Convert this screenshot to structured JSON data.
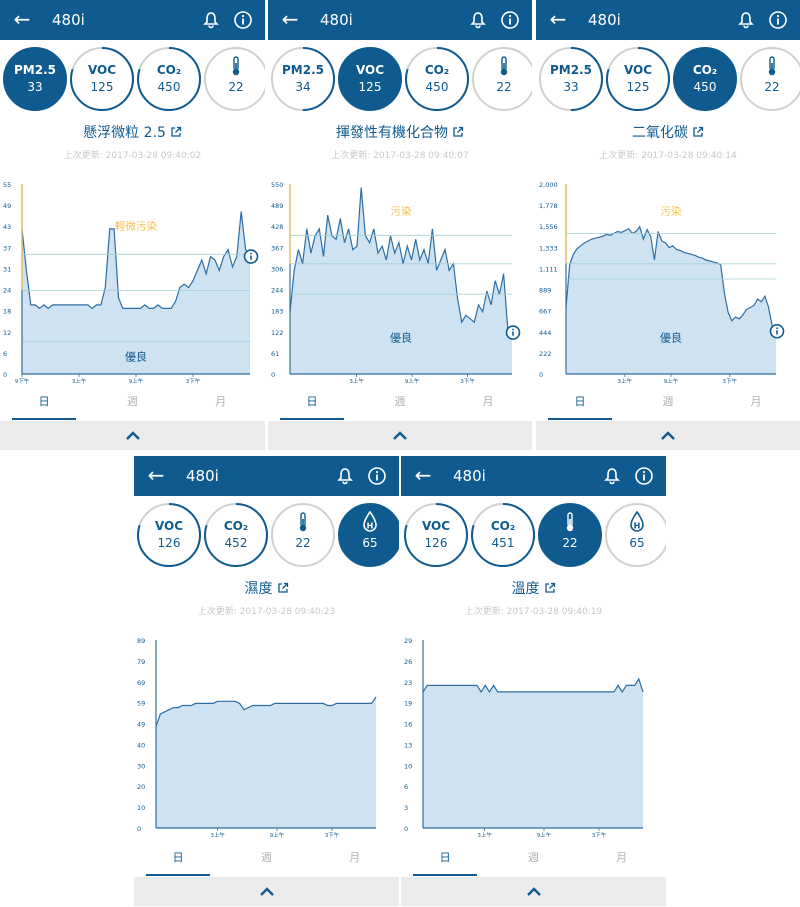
{
  "colors": {
    "primary": "#0f5b8f",
    "chart_fill": "#cfe2f1",
    "chart_line": "#2d6ea4",
    "threshold": "#f2c04e",
    "grid": "#a3d1d1",
    "ring_bg": "#d0d0d0"
  },
  "panels": [
    {
      "header": {
        "title": "480i",
        "back_icon": "back-arrow-icon",
        "bell_icon": "bell-icon",
        "info_icon": "info-icon"
      },
      "metrics": [
        {
          "label": "PM2.5",
          "value": "33",
          "active": true,
          "progress": 0.55
        },
        {
          "label": "VOC",
          "value": "125",
          "active": false,
          "progress": 0.8
        },
        {
          "label": "CO₂",
          "value": "450",
          "active": false,
          "progress": 0.8
        },
        {
          "label": "",
          "icon": "thermometer-icon",
          "value": "22",
          "active": false,
          "progress": 0
        }
      ],
      "title": "懸浮微粒 2.5",
      "updated": "上次更新: 2017-03-28 09:40:02",
      "tabs": [
        "日",
        "週",
        "月"
      ],
      "chart_data": {
        "type": "area",
        "y_ticks": [
          "55",
          "49",
          "43",
          "37",
          "31",
          "24",
          "18",
          "12",
          "6",
          "0"
        ],
        "ylim": [
          0,
          55
        ],
        "x_ticks": [
          "9下午",
          "3上午",
          "9上午",
          "3下午"
        ],
        "annotations": [
          "輕微污染",
          "優良"
        ],
        "values": [
          42,
          30,
          20,
          20,
          19,
          20,
          19,
          20,
          20,
          20,
          20,
          20,
          20,
          20,
          20,
          20,
          19,
          20,
          20,
          25,
          42,
          42,
          22,
          19,
          19,
          19,
          19,
          19,
          20,
          19,
          19,
          20,
          19,
          19,
          19,
          21,
          25,
          26,
          25,
          27,
          30,
          33,
          29,
          34,
          33,
          30,
          34,
          36,
          31,
          34,
          47,
          36,
          34
        ]
      }
    },
    {
      "header": {
        "title": "480i",
        "back_icon": "back-arrow-icon",
        "bell_icon": "bell-icon",
        "info_icon": "info-icon"
      },
      "metrics": [
        {
          "label": "PM2.5",
          "value": "34",
          "active": false,
          "progress": 0.5
        },
        {
          "label": "VOC",
          "value": "125",
          "active": true,
          "progress": 0.8
        },
        {
          "label": "CO₂",
          "value": "450",
          "active": false,
          "progress": 0.8
        },
        {
          "label": "",
          "icon": "thermometer-icon",
          "value": "22",
          "active": false,
          "progress": 0
        }
      ],
      "title": "揮發性有機化合物",
      "updated": "上次更新: 2017-03-28 09:40:07",
      "tabs": [
        "日",
        "週",
        "月"
      ],
      "chart_data": {
        "type": "area",
        "y_ticks": [
          "550",
          "489",
          "428",
          "367",
          "306",
          "244",
          "183",
          "122",
          "61",
          "0"
        ],
        "ylim": [
          0,
          550
        ],
        "x_ticks": [
          "3上午",
          "9上午",
          "3下午"
        ],
        "annotations": [
          "污染",
          "優良"
        ],
        "values": [
          180,
          300,
          360,
          320,
          420,
          350,
          400,
          420,
          340,
          460,
          400,
          390,
          450,
          380,
          420,
          360,
          370,
          540,
          400,
          380,
          420,
          350,
          370,
          330,
          400,
          350,
          380,
          320,
          370,
          330,
          390,
          330,
          360,
          320,
          420,
          300,
          330,
          360,
          300,
          320,
          220,
          150,
          170,
          160,
          150,
          200,
          180,
          240,
          200,
          270,
          230,
          290,
          130,
          120
        ]
      }
    },
    {
      "header": {
        "title": "480i",
        "back_icon": "back-arrow-icon",
        "bell_icon": "bell-icon",
        "info_icon": "info-icon"
      },
      "metrics": [
        {
          "label": "PM2.5",
          "value": "33",
          "active": false,
          "progress": 0.5
        },
        {
          "label": "VOC",
          "value": "125",
          "active": false,
          "progress": 0.8
        },
        {
          "label": "CO₂",
          "value": "450",
          "active": true,
          "progress": 0.8
        },
        {
          "label": "",
          "icon": "thermometer-icon",
          "value": "22",
          "active": false,
          "progress": 0
        }
      ],
      "title": "二氧化碳",
      "updated": "上次更新: 2017-03-28 09:40:14",
      "tabs": [
        "日",
        "週",
        "月"
      ],
      "chart_data": {
        "type": "area",
        "y_ticks": [
          "2,000",
          "1,778",
          "1,556",
          "1,333",
          "1,111",
          "889",
          "667",
          "444",
          "222",
          "0"
        ],
        "ylim": [
          0,
          2000
        ],
        "x_ticks": [
          "3上午",
          "9上午",
          "3下午"
        ],
        "annotations": [
          "污染",
          "優良"
        ],
        "values": [
          700,
          1150,
          1260,
          1320,
          1350,
          1380,
          1400,
          1420,
          1430,
          1440,
          1450,
          1470,
          1460,
          1480,
          1500,
          1490,
          1510,
          1530,
          1480,
          1500,
          1550,
          1420,
          1520,
          1450,
          1200,
          1500,
          1400,
          1380,
          1330,
          1350,
          1310,
          1300,
          1280,
          1270,
          1260,
          1250,
          1230,
          1220,
          1200,
          1190,
          1180,
          1170,
          1150,
          850,
          650,
          560,
          600,
          580,
          620,
          680,
          700,
          720,
          790,
          760,
          820,
          700,
          500,
          450
        ]
      }
    },
    {
      "header": {
        "title": "480i",
        "back_icon": "back-arrow-icon",
        "bell_icon": "bell-icon",
        "info_icon": "info-icon"
      },
      "metrics": [
        {
          "label": "VOC",
          "value": "126",
          "active": false,
          "progress": 0.8
        },
        {
          "label": "CO₂",
          "value": "452",
          "active": false,
          "progress": 0.8
        },
        {
          "label": "",
          "icon": "thermometer-icon",
          "value": "22",
          "active": false,
          "progress": 0
        },
        {
          "label": "",
          "icon": "humidity-drop-icon",
          "value": "65",
          "active": true,
          "progress": 0
        }
      ],
      "title": "濕度",
      "updated": "上次更新: 2017-03-28 09:40:23",
      "tabs": [
        "日",
        "週",
        "月"
      ],
      "chart_data": {
        "type": "area",
        "y_ticks": [
          "89",
          "79",
          "69",
          "59",
          "49",
          "40",
          "30",
          "20",
          "10",
          "0"
        ],
        "ylim": [
          0,
          89
        ],
        "x_ticks": [
          "3上午",
          "9上午",
          "3下午"
        ],
        "annotations": [],
        "values": [
          48,
          54,
          55,
          56,
          57,
          57,
          58,
          58,
          58,
          59,
          59,
          59,
          59,
          59,
          60,
          60,
          60,
          60,
          60,
          59,
          56,
          57,
          58,
          58,
          58,
          58,
          58,
          59,
          59,
          59,
          59,
          59,
          59,
          59,
          59,
          59,
          59,
          59,
          59,
          58,
          58,
          59,
          59,
          59,
          59,
          59,
          59,
          59,
          59,
          59,
          62
        ]
      }
    },
    {
      "header": {
        "title": "480i",
        "back_icon": "back-arrow-icon",
        "bell_icon": "bell-icon",
        "info_icon": "info-icon"
      },
      "metrics": [
        {
          "label": "VOC",
          "value": "126",
          "active": false,
          "progress": 0.8
        },
        {
          "label": "CO₂",
          "value": "451",
          "active": false,
          "progress": 0.8
        },
        {
          "label": "",
          "icon": "thermometer-icon",
          "value": "22",
          "active": true,
          "progress": 0
        },
        {
          "label": "",
          "icon": "humidity-drop-icon",
          "value": "65",
          "active": false,
          "progress": 0
        }
      ],
      "title": "溫度",
      "updated": "上次更新: 2017-03-28 09:40:19",
      "tabs": [
        "日",
        "週",
        "月"
      ],
      "chart_data": {
        "type": "area",
        "y_ticks": [
          "29",
          "26",
          "23",
          "19",
          "16",
          "13",
          "10",
          "6",
          "3",
          "0"
        ],
        "ylim": [
          0,
          29
        ],
        "x_ticks": [
          "3上午",
          "9上午",
          "3下午"
        ],
        "annotations": [],
        "values": [
          21,
          22,
          22,
          22,
          22,
          22,
          22,
          22,
          22,
          22,
          22,
          22,
          22,
          22,
          21,
          22,
          21,
          22,
          21,
          21,
          21,
          21,
          21,
          21,
          21,
          21,
          21,
          21,
          21,
          21,
          21,
          21,
          21,
          21,
          21,
          21,
          21,
          21,
          21,
          21,
          21,
          21,
          21,
          21,
          21,
          21,
          21,
          22,
          21,
          22,
          22,
          22,
          23,
          21
        ]
      }
    }
  ]
}
